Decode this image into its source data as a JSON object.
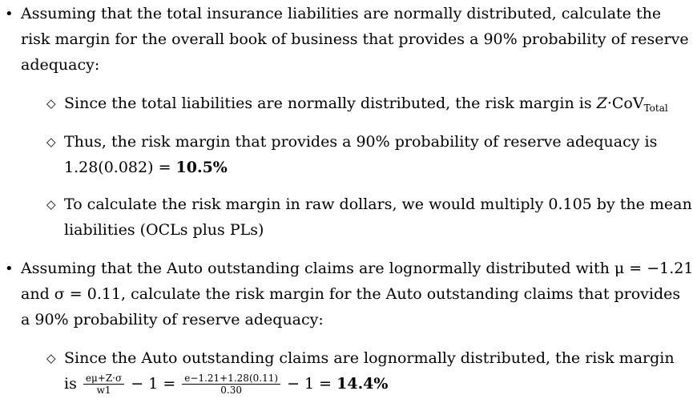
{
  "items": [
    {
      "lines": [
        "Assuming that the total insurance liabilities are normally distributed, calculate the",
        "risk margin for the overall book of business that provides a 90% probability of reserve",
        "adequacy:"
      ],
      "sub": [
        {
          "pre": "Since the total liabilities are normally distributed, the risk margin is ",
          "z": "Z",
          "dot": "·",
          "cov": "CoV",
          "cov_sub": "Total"
        },
        {
          "lines": [
            "Thus, the risk margin that provides a 90% probability of reserve adequacy is"
          ],
          "expr": "1.28(0.082) = ",
          "result": "10.5%"
        },
        {
          "lines": [
            "To calculate the risk margin in raw dollars, we would multiply 0.105 by the mean",
            "liabilities (OCLs plus PLs)"
          ]
        }
      ]
    },
    {
      "lines": [
        "Assuming that the Auto outstanding claims are lognormally distributed with μ = −1.21",
        "and σ = 0.11, calculate the risk margin for the Auto outstanding claims that provides",
        "a 90% probability of reserve adequacy:"
      ],
      "sub": [
        {
          "line1": "Since the Auto outstanding claims are lognormally distributed, the risk margin",
          "is": "is",
          "f1_num": "eμ+Z·σ",
          "f1_den": "w1",
          "mid": "− 1 =",
          "f2_num": "e−1.21+1.28(0.11)",
          "f2_den": "0.30",
          "end": "− 1 = ",
          "result": "14.4%"
        }
      ]
    }
  ]
}
